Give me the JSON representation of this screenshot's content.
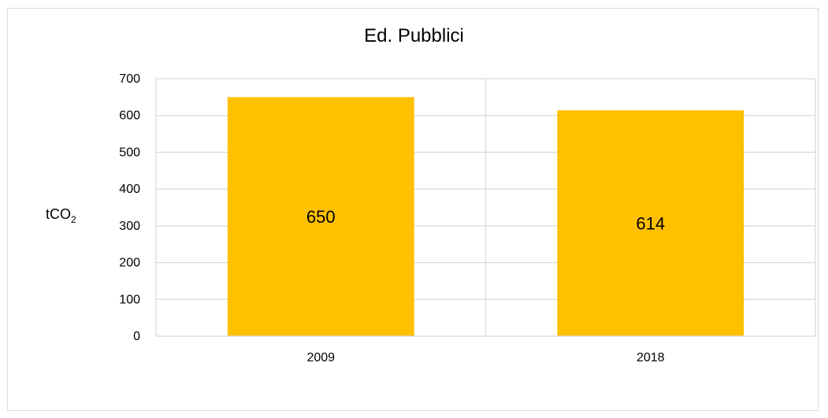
{
  "chart_data": {
    "type": "bar",
    "title": "Ed. Pubblici",
    "ylabel": {
      "main": "tCO",
      "sub": "2"
    },
    "xlabel": "",
    "categories": [
      "2009",
      "2018"
    ],
    "values": [
      650,
      614
    ],
    "data_labels": [
      "650",
      "614"
    ],
    "ylim": [
      0,
      700
    ],
    "yticks": [
      0,
      100,
      200,
      300,
      400,
      500,
      600,
      700
    ],
    "bar_color": "#FFC000",
    "grid": true,
    "legend": "none"
  }
}
